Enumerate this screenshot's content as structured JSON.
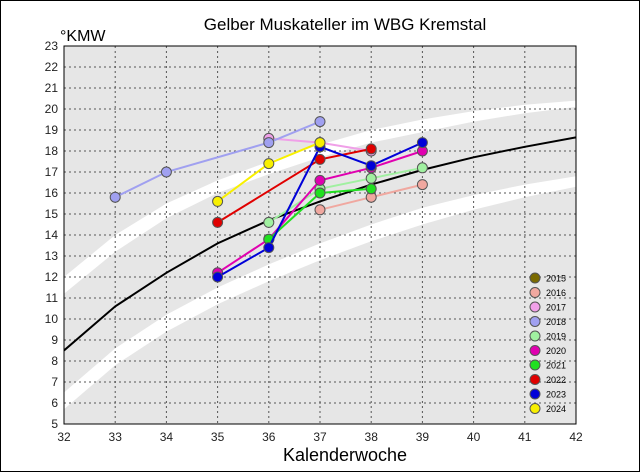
{
  "chart_data": {
    "type": "line",
    "title": "Gelber Muskateller im WBG Kremstal",
    "ylabel": "°KMW",
    "xlabel": "Kalenderwoche",
    "xlim": [
      32,
      42
    ],
    "ylim": [
      5,
      23
    ],
    "x_ticks": [
      "32",
      "33",
      "34",
      "35",
      "36",
      "37",
      "38",
      "39",
      "40",
      "41",
      "42"
    ],
    "y_ticks": [
      "5",
      "6",
      "7",
      "8",
      "9",
      "10",
      "11",
      "12",
      "13",
      "14",
      "15",
      "16",
      "17",
      "18",
      "19",
      "20",
      "21",
      "22",
      "23"
    ],
    "grid": true,
    "legend_position": "bottom-right",
    "reference_curve": {
      "x": [
        32,
        33,
        34,
        35,
        36,
        37,
        38,
        39,
        40,
        41,
        42
      ],
      "y": [
        8.5,
        10.6,
        12.2,
        13.6,
        14.7,
        15.6,
        16.4,
        17.1,
        17.7,
        18.2,
        18.65
      ],
      "color": "#000000"
    },
    "band_upper": {
      "x": [
        32,
        33,
        34,
        35,
        36,
        37,
        38,
        39,
        40,
        41,
        42
      ],
      "lo": [
        11.2,
        13.2,
        14.8,
        16.0,
        16.9,
        17.7,
        18.4,
        18.9,
        19.4,
        19.8,
        20.1
      ],
      "hi": [
        12.0,
        14.0,
        15.5,
        16.6,
        17.5,
        18.3,
        19.0,
        19.5,
        19.9,
        20.2,
        20.4
      ]
    },
    "band_lower": {
      "x": [
        32,
        33,
        34,
        35,
        36,
        37,
        38,
        39,
        40,
        41,
        42
      ],
      "lo": [
        5.7,
        7.8,
        9.4,
        10.7,
        11.8,
        12.8,
        13.7,
        14.5,
        15.2,
        15.8,
        16.3
      ],
      "hi": [
        6.5,
        8.6,
        10.2,
        11.5,
        12.6,
        13.6,
        14.5,
        15.3,
        15.9,
        16.4,
        16.8
      ]
    },
    "series": [
      {
        "name": "2015",
        "color": "#7a6a00",
        "x": [],
        "y": []
      },
      {
        "name": "2016",
        "color": "#f0a8a0",
        "x": [
          37,
          38,
          39
        ],
        "y": [
          15.2,
          15.8,
          16.4
        ]
      },
      {
        "name": "2017",
        "color": "#f0a0e8",
        "x": [
          36,
          37,
          38
        ],
        "y": [
          18.6,
          18.4,
          18.0
        ]
      },
      {
        "name": "2018",
        "color": "#a0a0f0",
        "x": [
          33,
          34,
          36,
          37
        ],
        "y": [
          15.8,
          17.0,
          18.4,
          19.4
        ]
      },
      {
        "name": "2019",
        "color": "#a0f0a0",
        "x": [
          36,
          37,
          38,
          39
        ],
        "y": [
          14.6,
          16.2,
          16.7,
          17.2
        ]
      },
      {
        "name": "2020",
        "color": "#e000b0",
        "x": [
          35,
          36,
          37,
          38,
          39
        ],
        "y": [
          12.2,
          13.8,
          16.6,
          17.2,
          18.0
        ]
      },
      {
        "name": "2021",
        "color": "#20e020",
        "x": [
          36,
          37,
          38
        ],
        "y": [
          13.8,
          16.0,
          16.2
        ]
      },
      {
        "name": "2022",
        "color": "#e00000",
        "x": [
          35,
          37,
          38
        ],
        "y": [
          14.6,
          17.6,
          18.1
        ]
      },
      {
        "name": "2023",
        "color": "#0000d8",
        "x": [
          35,
          36,
          37,
          38,
          39
        ],
        "y": [
          12.0,
          13.4,
          18.2,
          17.3,
          18.4
        ]
      },
      {
        "name": "2024",
        "color": "#f8f000",
        "x": [
          35,
          36,
          37
        ],
        "y": [
          15.6,
          17.4,
          18.4
        ]
      }
    ]
  }
}
